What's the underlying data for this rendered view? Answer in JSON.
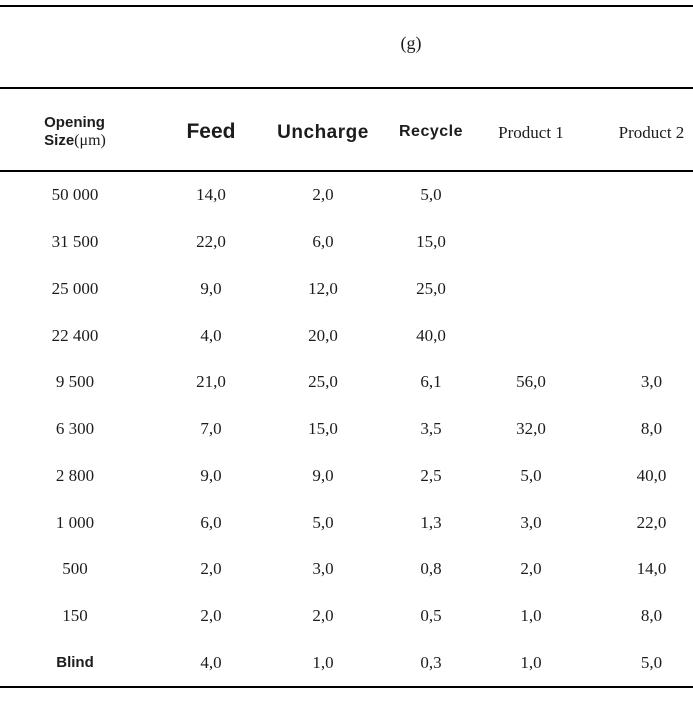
{
  "page": {
    "caption": "(g)"
  },
  "colors": {
    "text": "#1c1c1c",
    "rule": "#000000",
    "background": "#ffffff"
  },
  "table": {
    "header": {
      "opening_line1": "Opening",
      "opening_line2_name": "Size",
      "opening_line2_unit": "(μm)",
      "feed": "Feed",
      "uncharge": "Uncharge",
      "recycle": "Recycle",
      "product1": "Product 1",
      "product2": "Product 2"
    },
    "rows": [
      {
        "size": "50 000",
        "feed": "14,0",
        "uncharge": "2,0",
        "recycle": "5,0",
        "product1": "",
        "product2": ""
      },
      {
        "size": "31 500",
        "feed": "22,0",
        "uncharge": "6,0",
        "recycle": "15,0",
        "product1": "",
        "product2": ""
      },
      {
        "size": "25 000",
        "feed": "9,0",
        "uncharge": "12,0",
        "recycle": "25,0",
        "product1": "",
        "product2": ""
      },
      {
        "size": "22 400",
        "feed": "4,0",
        "uncharge": "20,0",
        "recycle": "40,0",
        "product1": "",
        "product2": ""
      },
      {
        "size": "9 500",
        "feed": "21,0",
        "uncharge": "25,0",
        "recycle": "6,1",
        "product1": "56,0",
        "product2": "3,0"
      },
      {
        "size": "6 300",
        "feed": "7,0",
        "uncharge": "15,0",
        "recycle": "3,5",
        "product1": "32,0",
        "product2": "8,0"
      },
      {
        "size": "2 800",
        "feed": "9,0",
        "uncharge": "9,0",
        "recycle": "2,5",
        "product1": "5,0",
        "product2": "40,0"
      },
      {
        "size": "1 000",
        "feed": "6,0",
        "uncharge": "5,0",
        "recycle": "1,3",
        "product1": "3,0",
        "product2": "22,0"
      },
      {
        "size": "500",
        "feed": "2,0",
        "uncharge": "3,0",
        "recycle": "0,8",
        "product1": "2,0",
        "product2": "14,0"
      },
      {
        "size": "150",
        "feed": "2,0",
        "uncharge": "2,0",
        "recycle": "0,5",
        "product1": "1,0",
        "product2": "8,0"
      },
      {
        "size": "Blind",
        "feed": "4,0",
        "uncharge": "1,0",
        "recycle": "0,3",
        "product1": "1,0",
        "product2": "5,0",
        "size_bold": true
      }
    ]
  }
}
